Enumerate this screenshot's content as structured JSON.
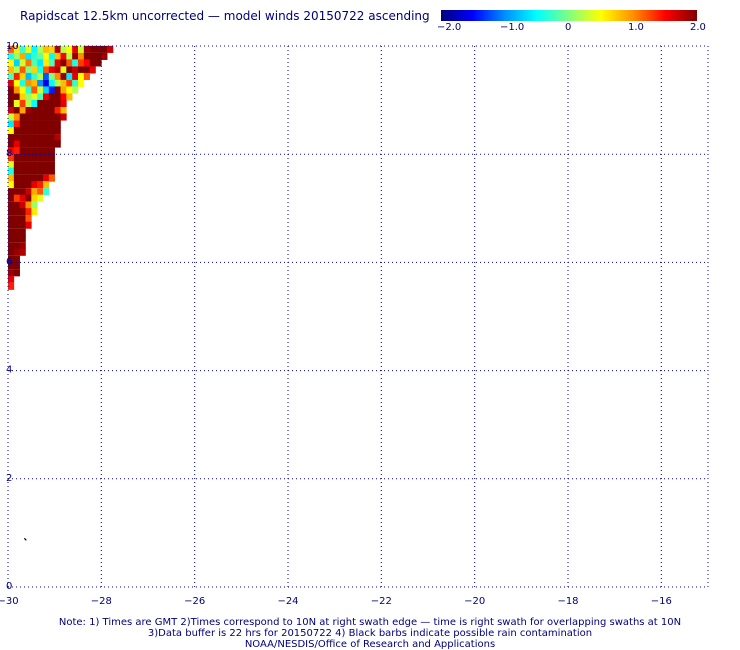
{
  "title": "Rapidscat 12.5km uncorrected — model winds 20150722 ascending",
  "colorbar": {
    "labels": [
      "−2.0",
      "−1.0",
      "0",
      "1.0",
      "2.0"
    ],
    "colors": [
      "#00007f",
      "#0000ff",
      "#0090ff",
      "#00ffff",
      "#80ff80",
      "#ffff00",
      "#ff9000",
      "#ff0000",
      "#800000"
    ]
  },
  "chart_data": {
    "type": "heatmap",
    "x_ticks": [
      "−30",
      "−28",
      "−26",
      "−24",
      "−22",
      "−20",
      "−18",
      "−16"
    ],
    "y_ticks": [
      "0",
      "2",
      "4",
      "6",
      "8",
      "10"
    ],
    "xlim": [
      -30,
      -15
    ],
    "ylim": [
      0,
      10
    ],
    "grid": true,
    "value_range": [
      -2.0,
      2.0
    ],
    "cell_size_deg": 0.125,
    "data_extent": "triangular swath in the top-left corner, from about 10N down to 5.4N near 30W",
    "rows": [
      {
        "lat": 9.94,
        "lon0": -30.0,
        "values": [
          1.2,
          0.6,
          -0.3,
          0.4,
          -0.5,
          0.2,
          0.8,
          0.7,
          1.8,
          0.2,
          0.5,
          1.6,
          0.3,
          1.9,
          2.0,
          2.0,
          2.0,
          1.7
        ]
      },
      {
        "lat": 9.81,
        "lon0": -30.0,
        "values": [
          -0.4,
          0.1,
          0.9,
          -0.6,
          -0.3,
          -0.1,
          0.5,
          -0.5,
          0.8,
          1.5,
          0.2,
          1.9,
          1.0,
          2.0,
          2.0,
          2.0,
          1.9
        ]
      },
      {
        "lat": 9.69,
        "lon0": -30.0,
        "values": [
          0.5,
          -0.7,
          0.3,
          1.1,
          -0.2,
          -0.6,
          0.6,
          -0.2,
          1.6,
          2.0,
          1.2,
          -0.4,
          1.3,
          1.5,
          2.0,
          2.0
        ]
      },
      {
        "lat": 9.56,
        "lon0": -30.0,
        "values": [
          0.8,
          0.2,
          1.2,
          0.0,
          0.7,
          -0.4,
          1.2,
          1.6,
          1.8,
          0.4,
          2.0,
          1.7,
          2.0,
          2.0,
          1.6
        ]
      },
      {
        "lat": 9.44,
        "lon0": -30.0,
        "values": [
          -0.2,
          1.4,
          0.7,
          -0.8,
          -0.3,
          0.2,
          -1.2,
          0.0,
          1.0,
          1.9,
          -0.6,
          1.6,
          0.5,
          1.2
        ]
      },
      {
        "lat": 9.31,
        "lon0": -30.0,
        "values": [
          1.6,
          0.5,
          -0.4,
          1.0,
          0.8,
          -1.0,
          -1.6,
          -0.5,
          0.2,
          0.8,
          1.3,
          -0.3,
          0.5
        ]
      },
      {
        "lat": 9.19,
        "lon0": -30.0,
        "values": [
          2.0,
          1.0,
          0.5,
          -0.3,
          1.2,
          0.3,
          -0.7,
          -1.4,
          2.0,
          0.9,
          0.5,
          0.2
        ]
      },
      {
        "lat": 9.06,
        "lon0": -30.0,
        "values": [
          2.0,
          2.0,
          0.7,
          0.1,
          0.4,
          -0.2,
          1.6,
          2.0,
          2.0,
          1.5,
          0.8
        ]
      },
      {
        "lat": 8.94,
        "lon0": -30.0,
        "values": [
          2.0,
          0.4,
          1.3,
          0.2,
          -0.5,
          2.0,
          2.0,
          2.0,
          2.0,
          1.6
        ]
      },
      {
        "lat": 8.81,
        "lon0": -30.0,
        "values": [
          1.7,
          2.0,
          0.9,
          1.9,
          2.0,
          2.0,
          2.0,
          2.0,
          1.4,
          0.8
        ]
      },
      {
        "lat": 8.69,
        "lon0": -30.0,
        "values": [
          0.3,
          1.0,
          2.0,
          2.0,
          2.0,
          2.0,
          2.0,
          2.0,
          2.0,
          1.7
        ]
      },
      {
        "lat": 8.56,
        "lon0": -30.0,
        "values": [
          -0.6,
          1.4,
          2.0,
          2.0,
          2.0,
          2.0,
          2.0,
          2.0,
          2.0
        ]
      },
      {
        "lat": 8.44,
        "lon0": -30.0,
        "values": [
          0.5,
          2.0,
          2.0,
          2.0,
          2.0,
          2.0,
          2.0,
          2.0,
          2.0
        ]
      },
      {
        "lat": 8.31,
        "lon0": -30.0,
        "values": [
          2.0,
          2.0,
          2.0,
          2.0,
          2.0,
          2.0,
          2.0,
          2.0,
          1.8
        ]
      },
      {
        "lat": 8.19,
        "lon0": -30.0,
        "values": [
          2.0,
          1.6,
          2.0,
          2.0,
          2.0,
          2.0,
          2.0,
          2.0,
          2.0
        ]
      },
      {
        "lat": 8.06,
        "lon0": -30.0,
        "values": [
          1.5,
          1.4,
          2.0,
          2.0,
          2.0,
          2.0,
          2.0,
          2.0
        ]
      },
      {
        "lat": 7.94,
        "lon0": -30.0,
        "values": [
          1.3,
          2.0,
          2.0,
          2.0,
          2.0,
          2.0,
          2.0,
          2.0
        ]
      },
      {
        "lat": 7.81,
        "lon0": -30.0,
        "values": [
          0.4,
          2.0,
          2.0,
          2.0,
          2.0,
          2.0,
          2.0,
          2.0
        ]
      },
      {
        "lat": 7.69,
        "lon0": -30.0,
        "values": [
          -0.4,
          2.0,
          2.0,
          2.0,
          2.0,
          2.0,
          2.0,
          2.0
        ]
      },
      {
        "lat": 7.56,
        "lon0": -30.0,
        "values": [
          0.8,
          2.0,
          2.0,
          2.0,
          2.0,
          2.0,
          1.6,
          1.2
        ]
      },
      {
        "lat": 7.44,
        "lon0": -30.0,
        "values": [
          0.5,
          2.0,
          2.0,
          2.0,
          1.6,
          1.4,
          0.8
        ]
      },
      {
        "lat": 7.31,
        "lon0": -30.0,
        "values": [
          2.0,
          2.0,
          2.0,
          1.7,
          0.9,
          1.2,
          -0.3
        ]
      },
      {
        "lat": 7.19,
        "lon0": -30.0,
        "values": [
          2.0,
          1.3,
          1.6,
          2.0,
          0.7,
          0.4
        ]
      },
      {
        "lat": 7.06,
        "lon0": -30.0,
        "values": [
          2.0,
          2.0,
          1.7,
          1.0,
          0.1
        ]
      },
      {
        "lat": 6.94,
        "lon0": -30.0,
        "values": [
          2.0,
          2.0,
          2.0,
          1.4,
          0.6
        ]
      },
      {
        "lat": 6.81,
        "lon0": -30.0,
        "values": [
          2.0,
          2.0,
          2.0,
          1.2
        ]
      },
      {
        "lat": 6.69,
        "lon0": -30.0,
        "values": [
          2.0,
          2.0,
          2.0,
          1.6
        ]
      },
      {
        "lat": 6.56,
        "lon0": -30.0,
        "values": [
          2.0,
          2.0,
          2.0
        ]
      },
      {
        "lat": 6.44,
        "lon0": -30.0,
        "values": [
          2.0,
          2.0,
          2.0
        ]
      },
      {
        "lat": 6.31,
        "lon0": -30.0,
        "values": [
          2.0,
          2.0,
          1.9
        ]
      },
      {
        "lat": 6.19,
        "lon0": -30.0,
        "values": [
          2.0,
          1.9,
          1.8
        ]
      },
      {
        "lat": 6.06,
        "lon0": -30.0,
        "values": [
          2.0,
          2.0
        ]
      },
      {
        "lat": 5.94,
        "lon0": -30.0,
        "values": [
          2.0,
          2.0
        ]
      },
      {
        "lat": 5.81,
        "lon0": -30.0,
        "values": [
          1.9,
          2.0
        ]
      },
      {
        "lat": 5.69,
        "lon0": -30.0,
        "values": [
          1.6
        ]
      },
      {
        "lat": 5.56,
        "lon0": -30.0,
        "values": [
          1.4
        ]
      }
    ],
    "rain_barbs": [
      {
        "lon": -29.65,
        "lat": 0.9
      }
    ]
  },
  "notes": {
    "line1": "Note: 1) Times are GMT 2)Times correspond to 10N at right swath edge — time is right swath for overlapping swaths at 10N",
    "line2": "3)Data buffer is 22 hrs for 20150722 4) Black barbs indicate possible rain contamination",
    "line3": "NOAA/NESDIS/Office of Research and Applications"
  }
}
